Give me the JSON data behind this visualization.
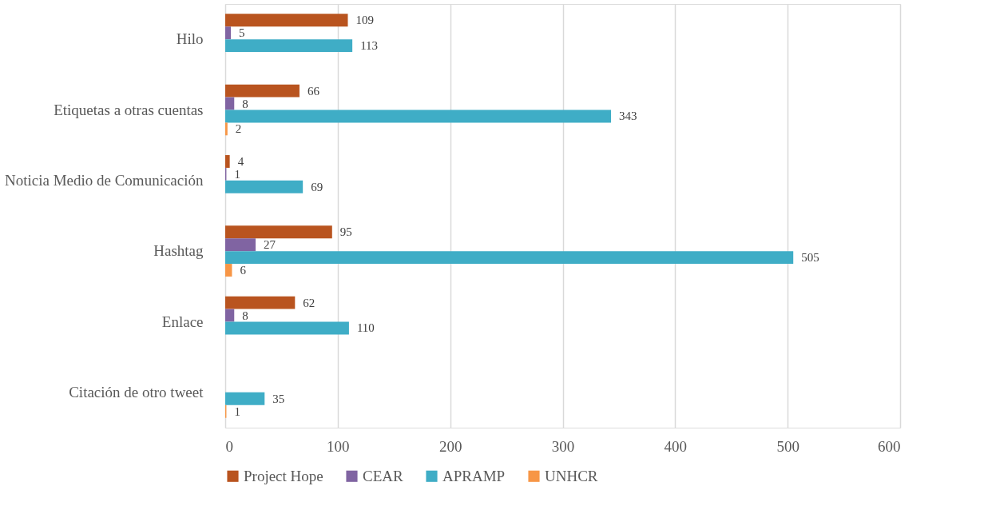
{
  "chart_data": {
    "type": "bar",
    "orientation": "horizontal",
    "categories": [
      "Hilo",
      "Etiquetas a otras cuentas",
      "Noticia Medio de Comunicación",
      "Hashtag",
      "Enlace",
      "Citación de otro tweet"
    ],
    "series": [
      {
        "name": "Project Hope",
        "color": "#b9541f",
        "values": [
          109,
          66,
          4,
          95,
          62,
          null
        ]
      },
      {
        "name": "CEAR",
        "color": "#8064a2",
        "values": [
          5,
          8,
          1,
          27,
          8,
          null
        ]
      },
      {
        "name": "APRAMP",
        "color": "#3fadc6",
        "values": [
          113,
          343,
          69,
          505,
          110,
          35
        ]
      },
      {
        "name": "UNHCR",
        "color": "#f79646",
        "values": [
          null,
          2,
          null,
          6,
          null,
          1
        ]
      }
    ],
    "xlim": [
      0,
      600
    ],
    "xticks": [
      0,
      100,
      200,
      300,
      400,
      500,
      600
    ],
    "grid": "x",
    "legend": "bottom",
    "data_labels": true
  }
}
